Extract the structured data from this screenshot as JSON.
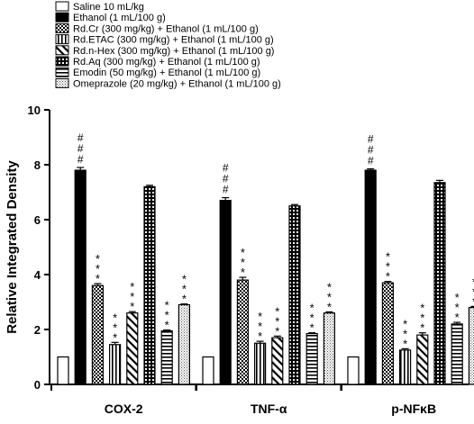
{
  "chart_data": {
    "type": "bar",
    "ylabel": "Relative Integrated Density",
    "xlabel": "",
    "ylim": [
      0,
      10
    ],
    "yticks": [
      0,
      2,
      4,
      6,
      8,
      10
    ],
    "grid": false,
    "legend_position": "top-left",
    "categories": [
      "COX-2",
      "TNF-α",
      "p-NFκB"
    ],
    "series": [
      {
        "name": "Saline 10 mL/kg",
        "pattern": "white",
        "values": [
          1.0,
          1.0,
          1.0
        ],
        "errors": [
          0,
          0,
          0
        ],
        "annotations": [
          "",
          "",
          ""
        ]
      },
      {
        "name": "Ethanol (1 mL/100 g)",
        "pattern": "black",
        "values": [
          7.8,
          6.7,
          7.8
        ],
        "errors": [
          0.1,
          0.1,
          0.05
        ],
        "annotations": [
          "###",
          "###",
          "###"
        ]
      },
      {
        "name": "Rd.Cr (300 mg/kg) + Ethanol (1 mL/100 g)",
        "pattern": "checker",
        "values": [
          3.6,
          3.8,
          3.7
        ],
        "errors": [
          0.07,
          0.1,
          0.05
        ],
        "annotations": [
          "***",
          "***",
          "***"
        ]
      },
      {
        "name": "Rd.ETAC (300 mg/kg) + Ethanol (1 mL/100 g)",
        "pattern": "vlines",
        "values": [
          1.45,
          1.5,
          1.25
        ],
        "errors": [
          0.08,
          0.07,
          0.05
        ],
        "annotations": [
          "***",
          "***",
          "***"
        ]
      },
      {
        "name": "Rd.n-Hex (300 mg/kg) + Ethanol (1 mL/100 g)",
        "pattern": "diag",
        "values": [
          2.6,
          1.7,
          1.8
        ],
        "errors": [
          0.05,
          0.06,
          0.08
        ],
        "annotations": [
          "***",
          "***",
          "***"
        ]
      },
      {
        "name": "Rd.Aq (300 mg/kg) + Ethanol (1 mL/100 g)",
        "pattern": "grid",
        "values": [
          7.2,
          6.5,
          7.35
        ],
        "errors": [
          0.05,
          0.05,
          0.08
        ],
        "annotations": [
          "",
          "",
          ""
        ]
      },
      {
        "name": "Emodin (50 mg/kg) + Ethanol (1 mL/100 g)",
        "pattern": "hlines",
        "values": [
          1.95,
          1.85,
          2.2
        ],
        "errors": [
          0.03,
          0.03,
          0.06
        ],
        "annotations": [
          "***",
          "***",
          "***"
        ]
      },
      {
        "name": "Omeprazole (20 mg/kg) + Ethanol (1 mL/100 g)",
        "pattern": "dots",
        "values": [
          2.9,
          2.6,
          2.8
        ],
        "errors": [
          0.03,
          0.04,
          0.04
        ],
        "annotations": [
          "***",
          "***",
          "***"
        ]
      }
    ]
  }
}
